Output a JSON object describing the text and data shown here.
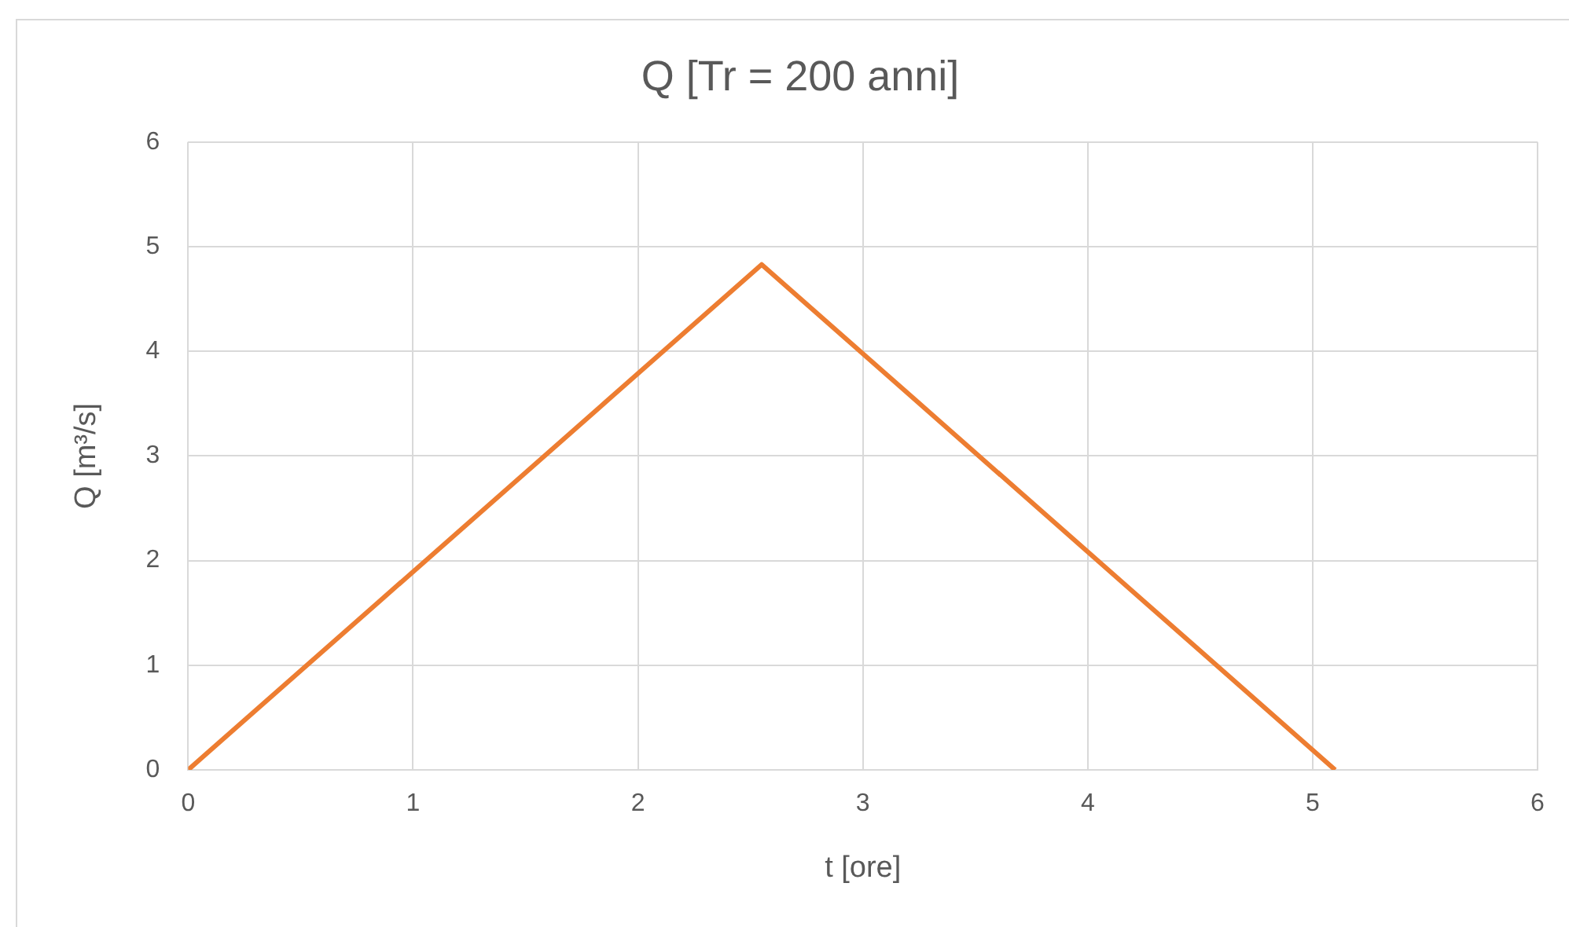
{
  "chart_data": {
    "type": "line",
    "title": "Q [Tr = 200 anni]",
    "xlabel": "t [ore]",
    "ylabel": "Q [m³/s]",
    "x": [
      0,
      2.55,
      5.1
    ],
    "series": [
      {
        "color": "#ed7d31",
        "values": [
          0,
          4.83,
          0
        ]
      }
    ],
    "xlim": [
      0,
      6
    ],
    "xticks": [
      0,
      1,
      2,
      3,
      4,
      5,
      6
    ],
    "ylim": [
      0,
      6
    ],
    "yticks": [
      0,
      1,
      2,
      3,
      4,
      5,
      6
    ],
    "grid": true,
    "legend": false,
    "marker": "none",
    "line_style": "solid"
  }
}
